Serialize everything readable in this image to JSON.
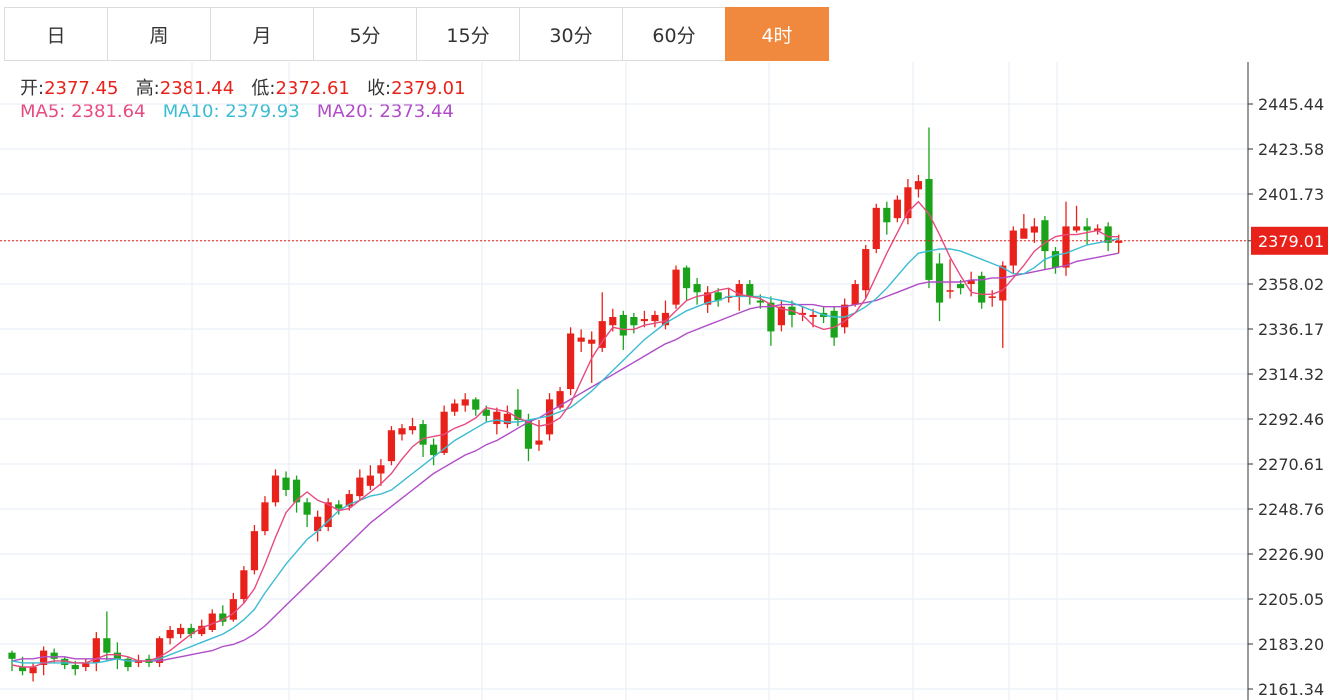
{
  "tabs": [
    {
      "label": "日",
      "active": false
    },
    {
      "label": "周",
      "active": false
    },
    {
      "label": "月",
      "active": false
    },
    {
      "label": "5分",
      "active": false
    },
    {
      "label": "15分",
      "active": false
    },
    {
      "label": "30分",
      "active": false
    },
    {
      "label": "60分",
      "active": false
    },
    {
      "label": "4时",
      "active": true
    }
  ],
  "ohlc_info": {
    "open_label": "开:",
    "open": "2377.45",
    "high_label": "高:",
    "high": "2381.44",
    "low_label": "低:",
    "low": "2372.61",
    "close_label": "收:",
    "close": "2379.01"
  },
  "ma_info": {
    "ma5_label": "MA5:",
    "ma5": "2381.64",
    "ma10_label": "MA10:",
    "ma10": "2379.93",
    "ma20_label": "MA20:",
    "ma20": "2373.44"
  },
  "colors": {
    "up": "#e8221a",
    "down": "#1aa31a",
    "ma5": "#e84a80",
    "ma10": "#3cbcd2",
    "ma20": "#b04cc8",
    "accent": "#f0883e",
    "last_price_bg": "#e8221a"
  },
  "chart_data": {
    "type": "candlestick",
    "y_ticks": [
      "2445.44",
      "2423.58",
      "2401.73",
      "2379.01",
      "2358.02",
      "2336.17",
      "2314.32",
      "2292.46",
      "2270.61",
      "2248.76",
      "2226.90",
      "2205.05",
      "2183.20",
      "2161.34"
    ],
    "ylim": [
      2161.34,
      2445.44
    ],
    "last_price": "2379.01",
    "grid": true,
    "candles": [
      [
        2179,
        2176,
        2180,
        2170
      ],
      [
        2172,
        2170,
        2177,
        2168
      ],
      [
        2169,
        2172,
        2174,
        2165
      ],
      [
        2173,
        2180,
        2182,
        2168
      ],
      [
        2179,
        2176,
        2181,
        2174
      ],
      [
        2176,
        2173,
        2177,
        2171
      ],
      [
        2173,
        2171,
        2175,
        2168
      ],
      [
        2172,
        2174,
        2176,
        2170
      ],
      [
        2174,
        2186,
        2189,
        2170
      ],
      [
        2186,
        2179,
        2199,
        2175
      ],
      [
        2179,
        2176,
        2184,
        2171
      ],
      [
        2176,
        2172,
        2177,
        2170
      ],
      [
        2174,
        2175,
        2178,
        2172
      ],
      [
        2176,
        2174,
        2178,
        2172
      ],
      [
        2174,
        2186,
        2187,
        2172
      ],
      [
        2186,
        2190,
        2192,
        2183
      ],
      [
        2188,
        2191,
        2193,
        2186
      ],
      [
        2191,
        2188,
        2193,
        2186
      ],
      [
        2188,
        2192,
        2195,
        2187
      ],
      [
        2190,
        2198,
        2200,
        2189
      ],
      [
        2198,
        2194,
        2202,
        2192
      ],
      [
        2195,
        2205,
        2208,
        2194
      ],
      [
        2205,
        2219,
        2221,
        2203
      ],
      [
        2219,
        2238,
        2241,
        2217
      ],
      [
        2238,
        2252,
        2255,
        2236
      ],
      [
        2252,
        2265,
        2268,
        2250
      ],
      [
        2264,
        2258,
        2267,
        2255
      ],
      [
        2263,
        2252,
        2265,
        2247
      ],
      [
        2252,
        2246,
        2254,
        2240
      ],
      [
        2238,
        2245,
        2248,
        2233
      ],
      [
        2240,
        2252,
        2254,
        2238
      ],
      [
        2251,
        2249,
        2253,
        2246
      ],
      [
        2250,
        2256,
        2258,
        2248
      ],
      [
        2255,
        2264,
        2268,
        2253
      ],
      [
        2260,
        2265,
        2270,
        2258
      ],
      [
        2266,
        2270,
        2273,
        2260
      ],
      [
        2272,
        2287,
        2289,
        2270
      ],
      [
        2285,
        2288,
        2290,
        2282
      ],
      [
        2287,
        2289,
        2293,
        2285
      ],
      [
        2290,
        2280,
        2292,
        2274
      ],
      [
        2280,
        2275,
        2283,
        2270
      ],
      [
        2276,
        2296,
        2299,
        2275
      ],
      [
        2296,
        2300,
        2302,
        2294
      ],
      [
        2299,
        2302,
        2305,
        2296
      ],
      [
        2302,
        2297,
        2303,
        2294
      ],
      [
        2297,
        2294,
        2299,
        2291
      ],
      [
        2290,
        2296,
        2298,
        2285
      ],
      [
        2290,
        2295,
        2299,
        2288
      ],
      [
        2297,
        2292,
        2307,
        2289
      ],
      [
        2292,
        2278,
        2295,
        2272
      ],
      [
        2280,
        2282,
        2292,
        2277
      ],
      [
        2285,
        2302,
        2305,
        2282
      ],
      [
        2298,
        2306,
        2308,
        2297
      ],
      [
        2307,
        2334,
        2337,
        2304
      ],
      [
        2330,
        2332,
        2336,
        2325
      ],
      [
        2329,
        2331,
        2335,
        2310
      ],
      [
        2327,
        2340,
        2354,
        2325
      ],
      [
        2338,
        2342,
        2346,
        2335
      ],
      [
        2343,
        2333,
        2345,
        2326
      ],
      [
        2342,
        2338,
        2344,
        2334
      ],
      [
        2340,
        2341,
        2345,
        2337
      ],
      [
        2340,
        2343,
        2345,
        2337
      ],
      [
        2338,
        2344,
        2350,
        2336
      ],
      [
        2348,
        2365,
        2367,
        2346
      ],
      [
        2366,
        2356,
        2367,
        2350
      ],
      [
        2358,
        2354,
        2361,
        2348
      ],
      [
        2348,
        2354,
        2357,
        2344
      ],
      [
        2354,
        2350,
        2356,
        2347
      ],
      [
        2352,
        2352,
        2356,
        2349
      ],
      [
        2352,
        2358,
        2360,
        2345
      ],
      [
        2358,
        2352,
        2360,
        2348
      ],
      [
        2350,
        2349,
        2353,
        2346
      ],
      [
        2349,
        2335,
        2352,
        2328
      ],
      [
        2338,
        2347,
        2350,
        2335
      ],
      [
        2347,
        2343,
        2350,
        2337
      ],
      [
        2343,
        2344,
        2347,
        2340
      ],
      [
        2342,
        2343,
        2346,
        2337
      ],
      [
        2344,
        2342,
        2347,
        2339
      ],
      [
        2345,
        2332,
        2347,
        2328
      ],
      [
        2337,
        2348,
        2351,
        2334
      ],
      [
        2348,
        2358,
        2360,
        2347
      ],
      [
        2355,
        2375,
        2377,
        2351
      ],
      [
        2375,
        2395,
        2397,
        2373
      ],
      [
        2395,
        2388,
        2398,
        2382
      ],
      [
        2390,
        2399,
        2401,
        2388
      ],
      [
        2390,
        2405,
        2409,
        2387
      ],
      [
        2404,
        2408,
        2411,
        2400
      ],
      [
        2409,
        2360,
        2434,
        2356
      ],
      [
        2368,
        2349,
        2373,
        2340
      ],
      [
        2355,
        2355,
        2370,
        2351
      ],
      [
        2358,
        2356,
        2360,
        2353
      ],
      [
        2358,
        2360,
        2364,
        2352
      ],
      [
        2362,
        2349,
        2364,
        2346
      ],
      [
        2352,
        2352,
        2355,
        2347
      ],
      [
        2350,
        2367,
        2369,
        2327
      ],
      [
        2367,
        2384,
        2386,
        2363
      ],
      [
        2380,
        2385,
        2392,
        2381
      ],
      [
        2383,
        2386,
        2390,
        2378
      ],
      [
        2389,
        2374,
        2391,
        2365
      ],
      [
        2374,
        2366,
        2376,
        2363
      ],
      [
        2366,
        2386,
        2398,
        2362
      ],
      [
        2384,
        2386,
        2396,
        2383
      ],
      [
        2386,
        2384,
        2390,
        2377
      ],
      [
        2384,
        2385,
        2387,
        2382
      ],
      [
        2386,
        2378,
        2388,
        2374
      ],
      [
        2378,
        2379,
        2382,
        2373
      ]
    ],
    "ma5": [
      2173,
      2172,
      2172,
      2174,
      2175,
      2175,
      2174,
      2174,
      2176,
      2178,
      2178,
      2177,
      2175,
      2175,
      2177,
      2180,
      2184,
      2188,
      2191,
      2193,
      2195,
      2198,
      2203,
      2210,
      2222,
      2235,
      2247,
      2253,
      2257,
      2253,
      2251,
      2248,
      2249,
      2253,
      2257,
      2261,
      2266,
      2273,
      2279,
      2283,
      2284,
      2285,
      2288,
      2290,
      2293,
      2298,
      2297,
      2296,
      2293,
      2291,
      2289,
      2290,
      2293,
      2300,
      2311,
      2322,
      2330,
      2337,
      2336,
      2336,
      2338,
      2339,
      2340,
      2345,
      2350,
      2352,
      2353,
      2355,
      2356,
      2353,
      2352,
      2351,
      2348,
      2346,
      2345,
      2343,
      2338,
      2336,
      2337,
      2340,
      2344,
      2351,
      2362,
      2373,
      2383,
      2393,
      2398,
      2392,
      2382,
      2371,
      2362,
      2354,
      2353,
      2353,
      2355,
      2361,
      2367,
      2374,
      2378,
      2381,
      2382,
      2382,
      2383,
      2384,
      2381,
      2381
    ],
    "ma10": [
      2175,
      2174,
      2174,
      2174,
      2174,
      2174,
      2174,
      2174,
      2174,
      2175,
      2176,
      2175,
      2175,
      2175,
      2176,
      2178,
      2180,
      2182,
      2184,
      2186,
      2188,
      2191,
      2195,
      2200,
      2208,
      2215,
      2222,
      2228,
      2234,
      2238,
      2243,
      2248,
      2251,
      2253,
      2255,
      2256,
      2258,
      2262,
      2266,
      2270,
      2274,
      2278,
      2282,
      2285,
      2288,
      2291,
      2292,
      2291,
      2291,
      2292,
      2293,
      2294,
      2296,
      2298,
      2302,
      2306,
      2311,
      2316,
      2321,
      2326,
      2331,
      2335,
      2339,
      2342,
      2345,
      2347,
      2349,
      2350,
      2352,
      2352,
      2352,
      2352,
      2351,
      2350,
      2349,
      2347,
      2345,
      2343,
      2342,
      2342,
      2344,
      2347,
      2351,
      2356,
      2362,
      2368,
      2373,
      2374,
      2375,
      2375,
      2374,
      2372,
      2370,
      2368,
      2366,
      2363,
      2363,
      2366,
      2370,
      2372,
      2373,
      2375,
      2377,
      2378,
      2379,
      2380
    ],
    "ma20": [
      2175,
      2176,
      2176,
      2177,
      2177,
      2177,
      2176,
      2176,
      2176,
      2176,
      2176,
      2175,
      2175,
      2175,
      2175,
      2176,
      2177,
      2178,
      2179,
      2180,
      2182,
      2183,
      2185,
      2188,
      2192,
      2197,
      2202,
      2207,
      2212,
      2217,
      2222,
      2227,
      2232,
      2237,
      2242,
      2246,
      2250,
      2254,
      2258,
      2262,
      2266,
      2269,
      2272,
      2275,
      2277,
      2280,
      2282,
      2285,
      2288,
      2291,
      2293,
      2296,
      2299,
      2302,
      2305,
      2308,
      2311,
      2314,
      2317,
      2320,
      2323,
      2326,
      2329,
      2331,
      2334,
      2336,
      2338,
      2340,
      2342,
      2344,
      2346,
      2347,
      2347,
      2348,
      2348,
      2348,
      2348,
      2347,
      2347,
      2347,
      2348,
      2349,
      2350,
      2352,
      2354,
      2356,
      2358,
      2359,
      2359,
      2359,
      2359,
      2360,
      2360,
      2361,
      2361,
      2362,
      2363,
      2364,
      2365,
      2366,
      2367,
      2369,
      2370,
      2371,
      2372,
      2373
    ]
  }
}
